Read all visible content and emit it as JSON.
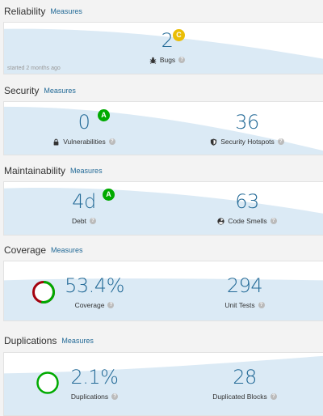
{
  "reliability": {
    "title": "Reliability",
    "measures_link": "Measures",
    "bugs_value": "2",
    "bugs_rating": "C",
    "bugs_label": "Bugs",
    "started": "started 2 months ago"
  },
  "security": {
    "title": "Security",
    "measures_link": "Measures",
    "vulnerabilities_value": "0",
    "vulnerabilities_rating": "A",
    "vulnerabilities_label": "Vulnerabilities",
    "hotspots_value": "36",
    "hotspots_label": "Security Hotspots"
  },
  "maintainability": {
    "title": "Maintainability",
    "measures_link": "Measures",
    "debt_value": "4d",
    "debt_rating": "A",
    "debt_label": "Debt",
    "smells_value": "63",
    "smells_label": "Code Smells"
  },
  "coverage": {
    "title": "Coverage",
    "measures_link": "Measures",
    "coverage_value": "53.4%",
    "coverage_label": "Coverage",
    "coverage_fraction": 0.534,
    "tests_value": "294",
    "tests_label": "Unit Tests"
  },
  "duplications": {
    "title": "Duplications",
    "measures_link": "Measures",
    "dup_value": "2.1%",
    "dup_label": "Duplications",
    "blocks_value": "28",
    "blocks_label": "Duplicated Blocks"
  },
  "help_glyph": "?",
  "colors": {
    "link": "#236a97",
    "rating_a": "#00aa00",
    "rating_c": "#eabe06",
    "wave": "#dbeaf5",
    "donut_red": "#a4030f",
    "donut_green": "#00aa00"
  }
}
